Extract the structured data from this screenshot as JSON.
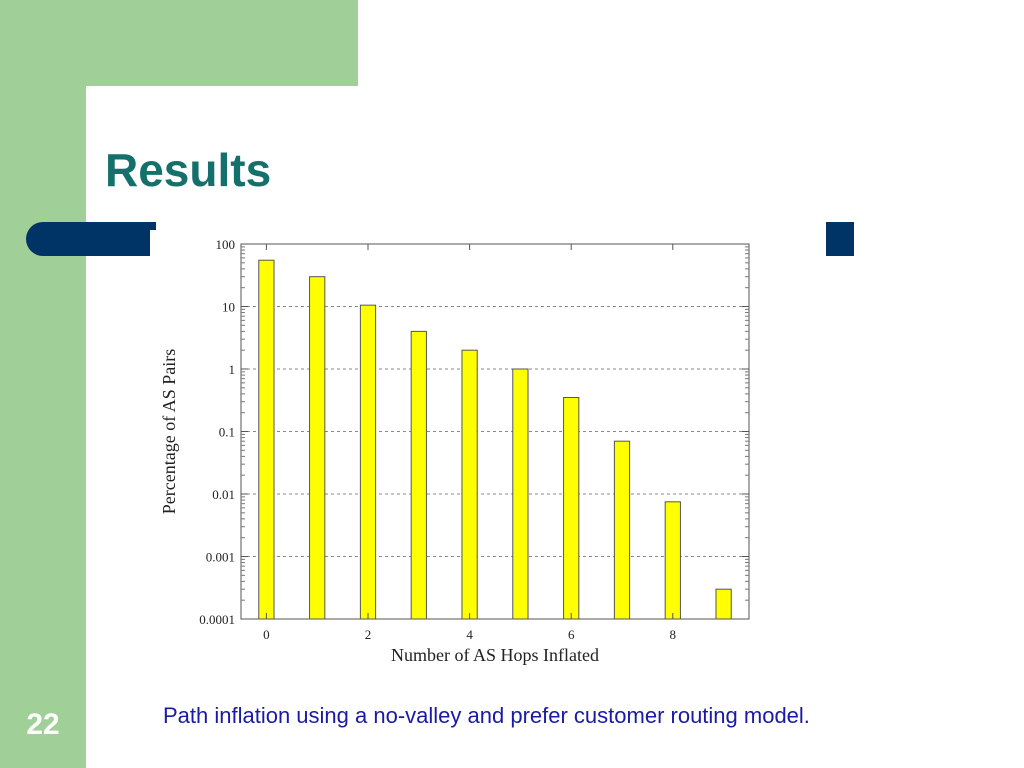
{
  "slide": {
    "title": "Results",
    "caption": "Path inflation using a no-valley and prefer customer routing model.",
    "page_number": "22"
  },
  "colors": {
    "green": "#a0cf98",
    "title": "#14706b",
    "accent_bar": "#003366",
    "caption": "#1a1aa6",
    "bar_fill": "#ffff00",
    "bar_stroke": "#555555"
  },
  "chart_data": {
    "type": "bar",
    "title": "",
    "xlabel": "Number of AS Hops Inflated",
    "ylabel": "Percentage of AS Pairs",
    "y_scale": "log",
    "ylim": [
      0.0001,
      100
    ],
    "xlim": [
      -0.5,
      9.5
    ],
    "y_ticks": [
      0.0001,
      0.001,
      0.01,
      0.1,
      1,
      10,
      100
    ],
    "y_tick_labels": [
      "0.0001",
      "0.001",
      "0.01",
      "0.1",
      "1",
      "10",
      "100"
    ],
    "x_ticks": [
      0,
      2,
      4,
      6,
      8
    ],
    "x_tick_labels": [
      "0",
      "2",
      "4",
      "6",
      "8"
    ],
    "grid": "horizontal dashed",
    "categories": [
      0,
      1,
      2,
      3,
      4,
      5,
      6,
      7,
      8,
      9
    ],
    "values": [
      55,
      30,
      10.5,
      4,
      2,
      1,
      0.35,
      0.07,
      0.0075,
      0.0003
    ]
  }
}
